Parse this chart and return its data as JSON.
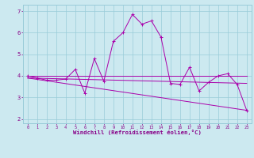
{
  "title": "",
  "xlabel": "Windchill (Refroidissement éolien,°C)",
  "xlim": [
    -0.5,
    23.5
  ],
  "ylim": [
    1.8,
    7.3
  ],
  "yticks": [
    2,
    3,
    4,
    5,
    6,
    7
  ],
  "xticks": [
    0,
    1,
    2,
    3,
    4,
    5,
    6,
    7,
    8,
    9,
    10,
    11,
    12,
    13,
    14,
    15,
    16,
    17,
    18,
    19,
    20,
    21,
    22,
    23
  ],
  "background_color": "#cce9f0",
  "grid_color": "#99ccd9",
  "line_color": "#aa00aa",
  "tick_color": "#880088",
  "series": [
    {
      "x": [
        0,
        1,
        2,
        3,
        4,
        5,
        6,
        7,
        8,
        9,
        10,
        11,
        12,
        13,
        14,
        15,
        16,
        17,
        18,
        19,
        20,
        21,
        22,
        23
      ],
      "y": [
        4.0,
        3.9,
        3.8,
        3.8,
        3.85,
        4.3,
        3.2,
        4.8,
        3.75,
        5.6,
        6.0,
        6.85,
        6.4,
        6.55,
        5.8,
        3.65,
        3.6,
        4.4,
        3.3,
        3.7,
        4.0,
        4.1,
        3.6,
        2.4
      ],
      "marker": "+"
    },
    {
      "x": [
        0,
        23
      ],
      "y": [
        4.0,
        4.0
      ],
      "marker": null
    },
    {
      "x": [
        0,
        23
      ],
      "y": [
        3.9,
        3.65
      ],
      "marker": null
    },
    {
      "x": [
        0,
        23
      ],
      "y": [
        3.9,
        2.4
      ],
      "marker": null
    }
  ]
}
